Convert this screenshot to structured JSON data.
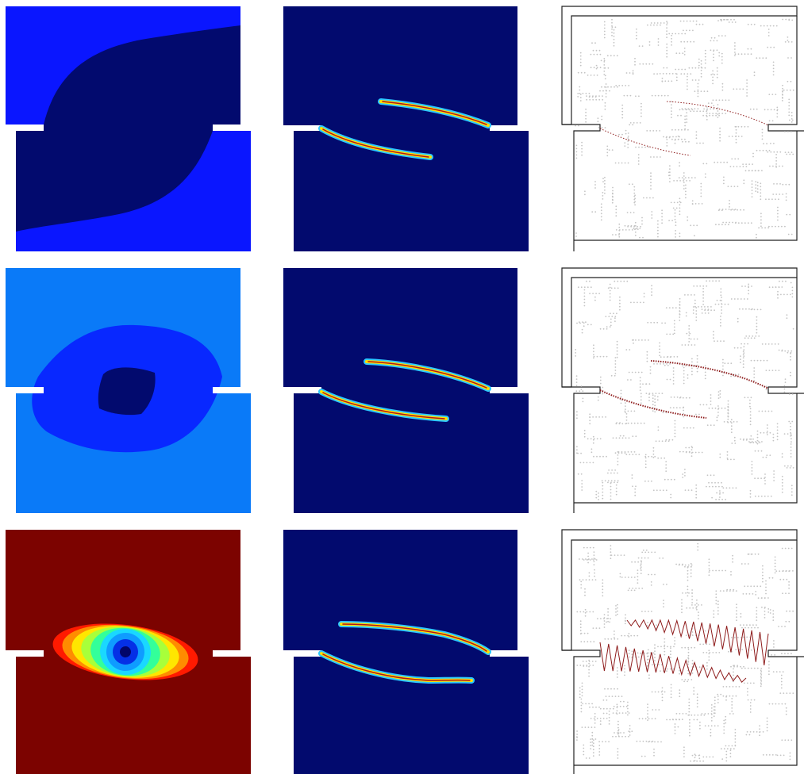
{
  "figure": {
    "rows": [
      {
        "phase_field": "uniform-with-dark-s-shaped-band",
        "cracks": "two-thin-parallel-cracks",
        "vectors": "sparse-vector-field"
      },
      {
        "phase_field": "concentric-diamond-zones",
        "cracks": "two-thin-parallel-cracks",
        "vectors": "moderate-vector-field"
      },
      {
        "phase_field": "jet-colormap-elliptical-rings",
        "cracks": "two-thin-parallel-cracks",
        "vectors": "dense-zigzag-vector-field"
      }
    ],
    "colors": {
      "bright_blue": "#0a16ff",
      "dark_navy": "#020a6e",
      "sky_blue": "#0a7af8",
      "royal_blue": "#0828ff",
      "dark_red": "#7c0300",
      "crack_red": "#b3161a",
      "vector_red": "#8e1c1c",
      "dot_gray": "#c4c4c4",
      "outline": "#222222"
    }
  }
}
